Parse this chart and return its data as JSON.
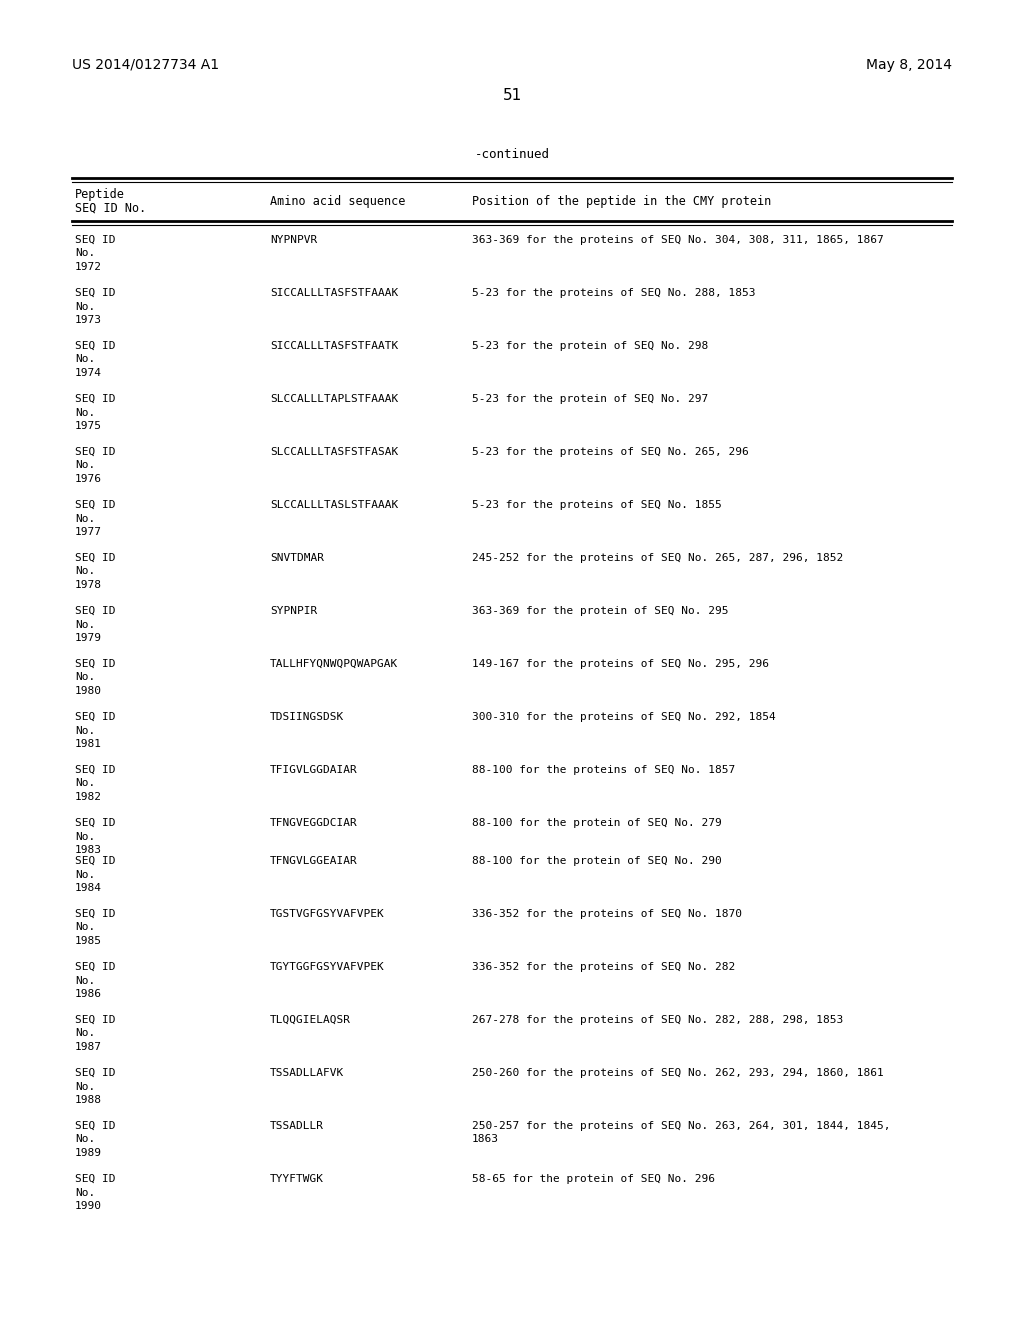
{
  "left_header": "US 2014/0127734 A1",
  "right_header": "May 8, 2014",
  "page_number": "51",
  "continued_label": "-continued",
  "col1_header_line1": "Peptide",
  "col1_header_line2": "SEQ ID No.Amino acid sequence",
  "col3_header": "Position of the peptide in the CMY protein",
  "rows": [
    {
      "seq_id": "SEQ ID\nNo.\n1972",
      "amino": "NYPNPVR",
      "position": "363-369 for the proteins of SEQ No. 304, 308, 311, 1865, 1867",
      "close_next": false
    },
    {
      "seq_id": "SEQ ID\nNo.\n1973",
      "amino": "SICCALLLTASFSTFAAAK",
      "position": "5-23 for the proteins of SEQ No. 288, 1853",
      "close_next": false
    },
    {
      "seq_id": "SEQ ID\nNo.\n1974",
      "amino": "SICCALLLTASFSTFAATK",
      "position": "5-23 for the protein of SEQ No. 298",
      "close_next": false
    },
    {
      "seq_id": "SEQ ID\nNo.\n1975",
      "amino": "SLCCALLLTAPLSTFAAAK",
      "position": "5-23 for the protein of SEQ No. 297",
      "close_next": false
    },
    {
      "seq_id": "SEQ ID\nNo.\n1976",
      "amino": "SLCCALLLTASFSTFASAK",
      "position": "5-23 for the proteins of SEQ No. 265, 296",
      "close_next": false
    },
    {
      "seq_id": "SEQ ID\nNo.\n1977",
      "amino": "SLCCALLLTASLSTFAAAK",
      "position": "5-23 for the proteins of SEQ No. 1855",
      "close_next": false
    },
    {
      "seq_id": "SEQ ID\nNo.\n1978",
      "amino": "SNVTDMAR",
      "position": "245-252 for the proteins of SEQ No. 265, 287, 296, 1852",
      "close_next": false
    },
    {
      "seq_id": "SEQ ID\nNo.\n1979",
      "amino": "SYPNPIR",
      "position": "363-369 for the protein of SEQ No. 295",
      "close_next": false
    },
    {
      "seq_id": "SEQ ID\nNo.\n1980",
      "amino": "TALLHFYQNWQPQWAPGAK",
      "position": "149-167 for the proteins of SEQ No. 295, 296",
      "close_next": false
    },
    {
      "seq_id": "SEQ ID\nNo.\n1981",
      "amino": "TDSIINGSDSK",
      "position": "300-310 for the proteins of SEQ No. 292, 1854",
      "close_next": false
    },
    {
      "seq_id": "SEQ ID\nNo.\n1982",
      "amino": "TFIGVLGGDAIAR",
      "position": "88-100 for the proteins of SEQ No. 1857",
      "close_next": false
    },
    {
      "seq_id": "SEQ ID\nNo.\n1983",
      "amino": "TFNGVEGGDCIAR",
      "position": "88-100 for the protein of SEQ No. 279",
      "close_next": true
    },
    {
      "seq_id": "SEQ ID\nNo.\n1984",
      "amino": "TFNGVLGGEAIAR",
      "position": "88-100 for the protein of SEQ No. 290",
      "close_next": false
    },
    {
      "seq_id": "SEQ ID\nNo.\n1985",
      "amino": "TGSTVGFGSYVAFVPEK",
      "position": "336-352 for the proteins of SEQ No. 1870",
      "close_next": false
    },
    {
      "seq_id": "SEQ ID\nNo.\n1986",
      "amino": "TGYTGGFGSYVAFVPEK",
      "position": "336-352 for the proteins of SEQ No. 282",
      "close_next": false
    },
    {
      "seq_id": "SEQ ID\nNo.\n1987",
      "amino": "TLQQGIELAQSR",
      "position": "267-278 for the proteins of SEQ No. 282, 288, 298, 1853",
      "close_next": false
    },
    {
      "seq_id": "SEQ ID\nNo.\n1988",
      "amino": "TSSADLLAFVK",
      "position": "250-260 for the proteins of SEQ No. 262, 293, 294, 1860, 1861",
      "close_next": false
    },
    {
      "seq_id": "SEQ ID\nNo.\n1989",
      "amino": "TSSADLLR",
      "position": "250-257 for the proteins of SEQ No. 263, 264, 301, 1844, 1845,\n1863",
      "close_next": false
    },
    {
      "seq_id": "SEQ ID\nNo.\n1990",
      "amino": "TYYFTWGK",
      "position": "58-65 for the protein of SEQ No. 296",
      "close_next": false
    }
  ],
  "bg_color": "#ffffff",
  "text_color": "#000000"
}
